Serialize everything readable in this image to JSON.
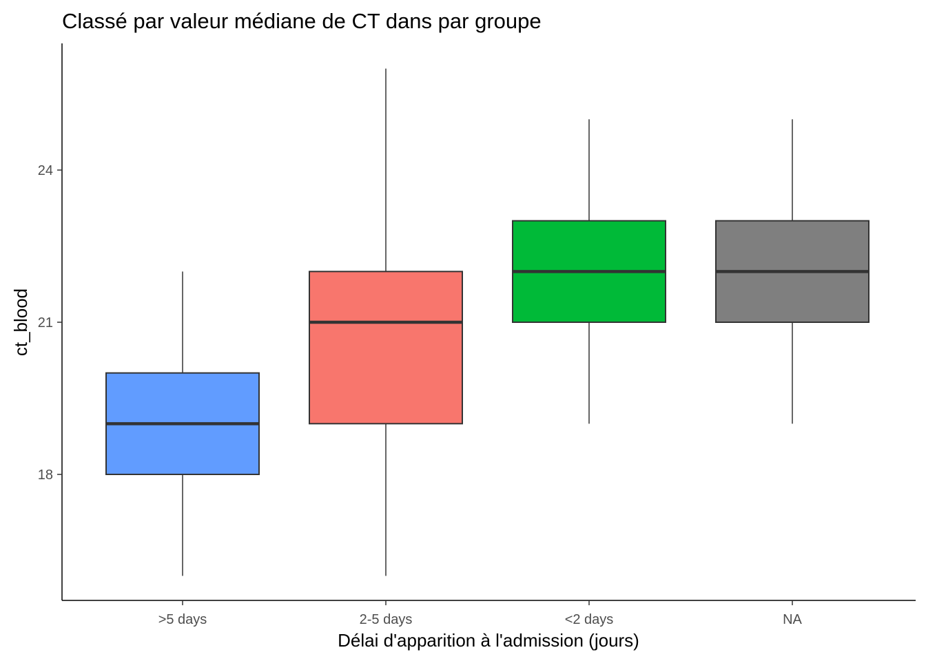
{
  "chart_data": {
    "type": "boxplot",
    "title": "Classé par valeur médiane de CT dans par groupe",
    "xlabel": "Délai d'apparition à l'admission (jours)",
    "ylabel": "ct_blood",
    "categories": [
      ">5 days",
      "2-5 days",
      "<2 days",
      "NA"
    ],
    "ylim": [
      15.5,
      26.5
    ],
    "yticks": [
      18,
      21,
      24
    ],
    "grid": false,
    "legend": "none",
    "boxes": [
      {
        "category": ">5 days",
        "min": 16,
        "q1": 18,
        "median": 19,
        "q3": 20,
        "max": 22,
        "color": "#619CFF"
      },
      {
        "category": "2-5 days",
        "min": 16,
        "q1": 19,
        "median": 21,
        "q3": 22,
        "max": 26,
        "color": "#F8766D"
      },
      {
        "category": "<2 days",
        "min": 19,
        "q1": 21,
        "median": 22,
        "q3": 23,
        "max": 25,
        "color": "#00BA38"
      },
      {
        "category": "NA",
        "min": 19,
        "q1": 21,
        "median": 22,
        "q3": 23,
        "max": 25,
        "color": "#7F7F7F"
      }
    ]
  }
}
